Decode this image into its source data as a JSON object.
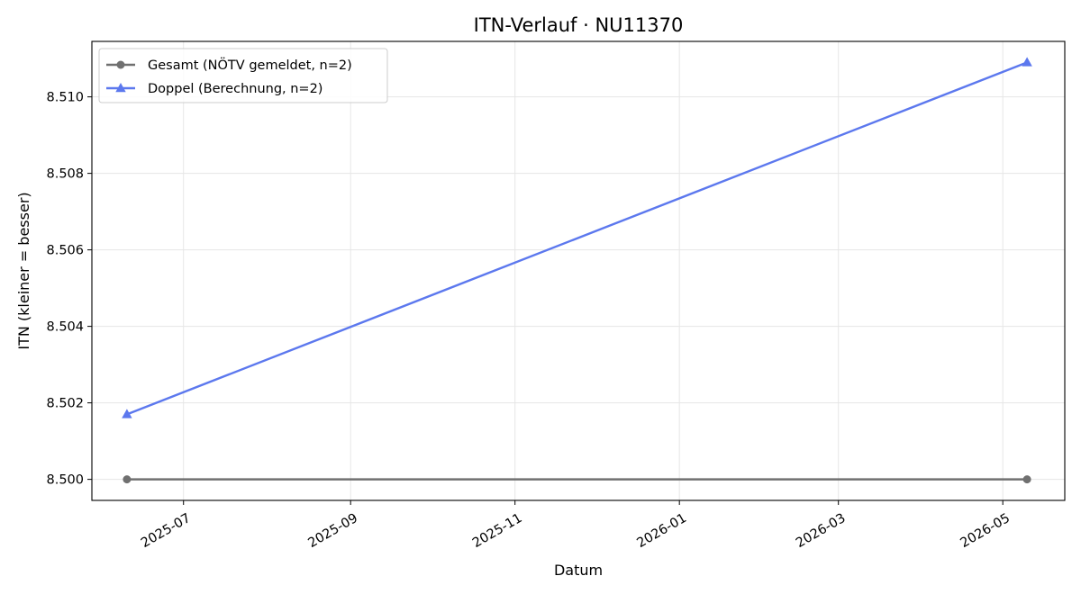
{
  "chart_data": {
    "type": "line",
    "title": "ITN-Verlauf · NU11370",
    "xlabel": "Datum",
    "ylabel": "ITN  (kleiner = besser)",
    "x_type": "date",
    "xlim": [
      "2025-05-28",
      "2026-05-24"
    ],
    "ylim": [
      8.49945,
      8.51145
    ],
    "x_ticks": [
      "2025-07-01",
      "2025-09-01",
      "2025-11-01",
      "2026-01-01",
      "2026-03-01",
      "2026-05-01"
    ],
    "x_tick_labels": [
      "2025-07",
      "2025-09",
      "2025-11",
      "2026-01",
      "2026-03",
      "2026-05"
    ],
    "y_ticks": [
      8.5,
      8.502,
      8.504,
      8.506,
      8.508,
      8.51
    ],
    "y_tick_labels": [
      "8.500",
      "8.502",
      "8.504",
      "8.506",
      "8.508",
      "8.510"
    ],
    "grid": true,
    "legend_position": "top-left",
    "series": [
      {
        "name": "Gesamt (NÖTV gemeldet, n=2)",
        "color": "#707070",
        "marker": "circle",
        "x": [
          "2025-06-10",
          "2026-05-10"
        ],
        "y": [
          8.5,
          8.5
        ]
      },
      {
        "name": "Doppel (Berechnung, n=2)",
        "color": "#5c78ee",
        "marker": "triangle",
        "x": [
          "2025-06-10",
          "2026-05-10"
        ],
        "y": [
          8.5017,
          8.5109
        ]
      }
    ]
  }
}
